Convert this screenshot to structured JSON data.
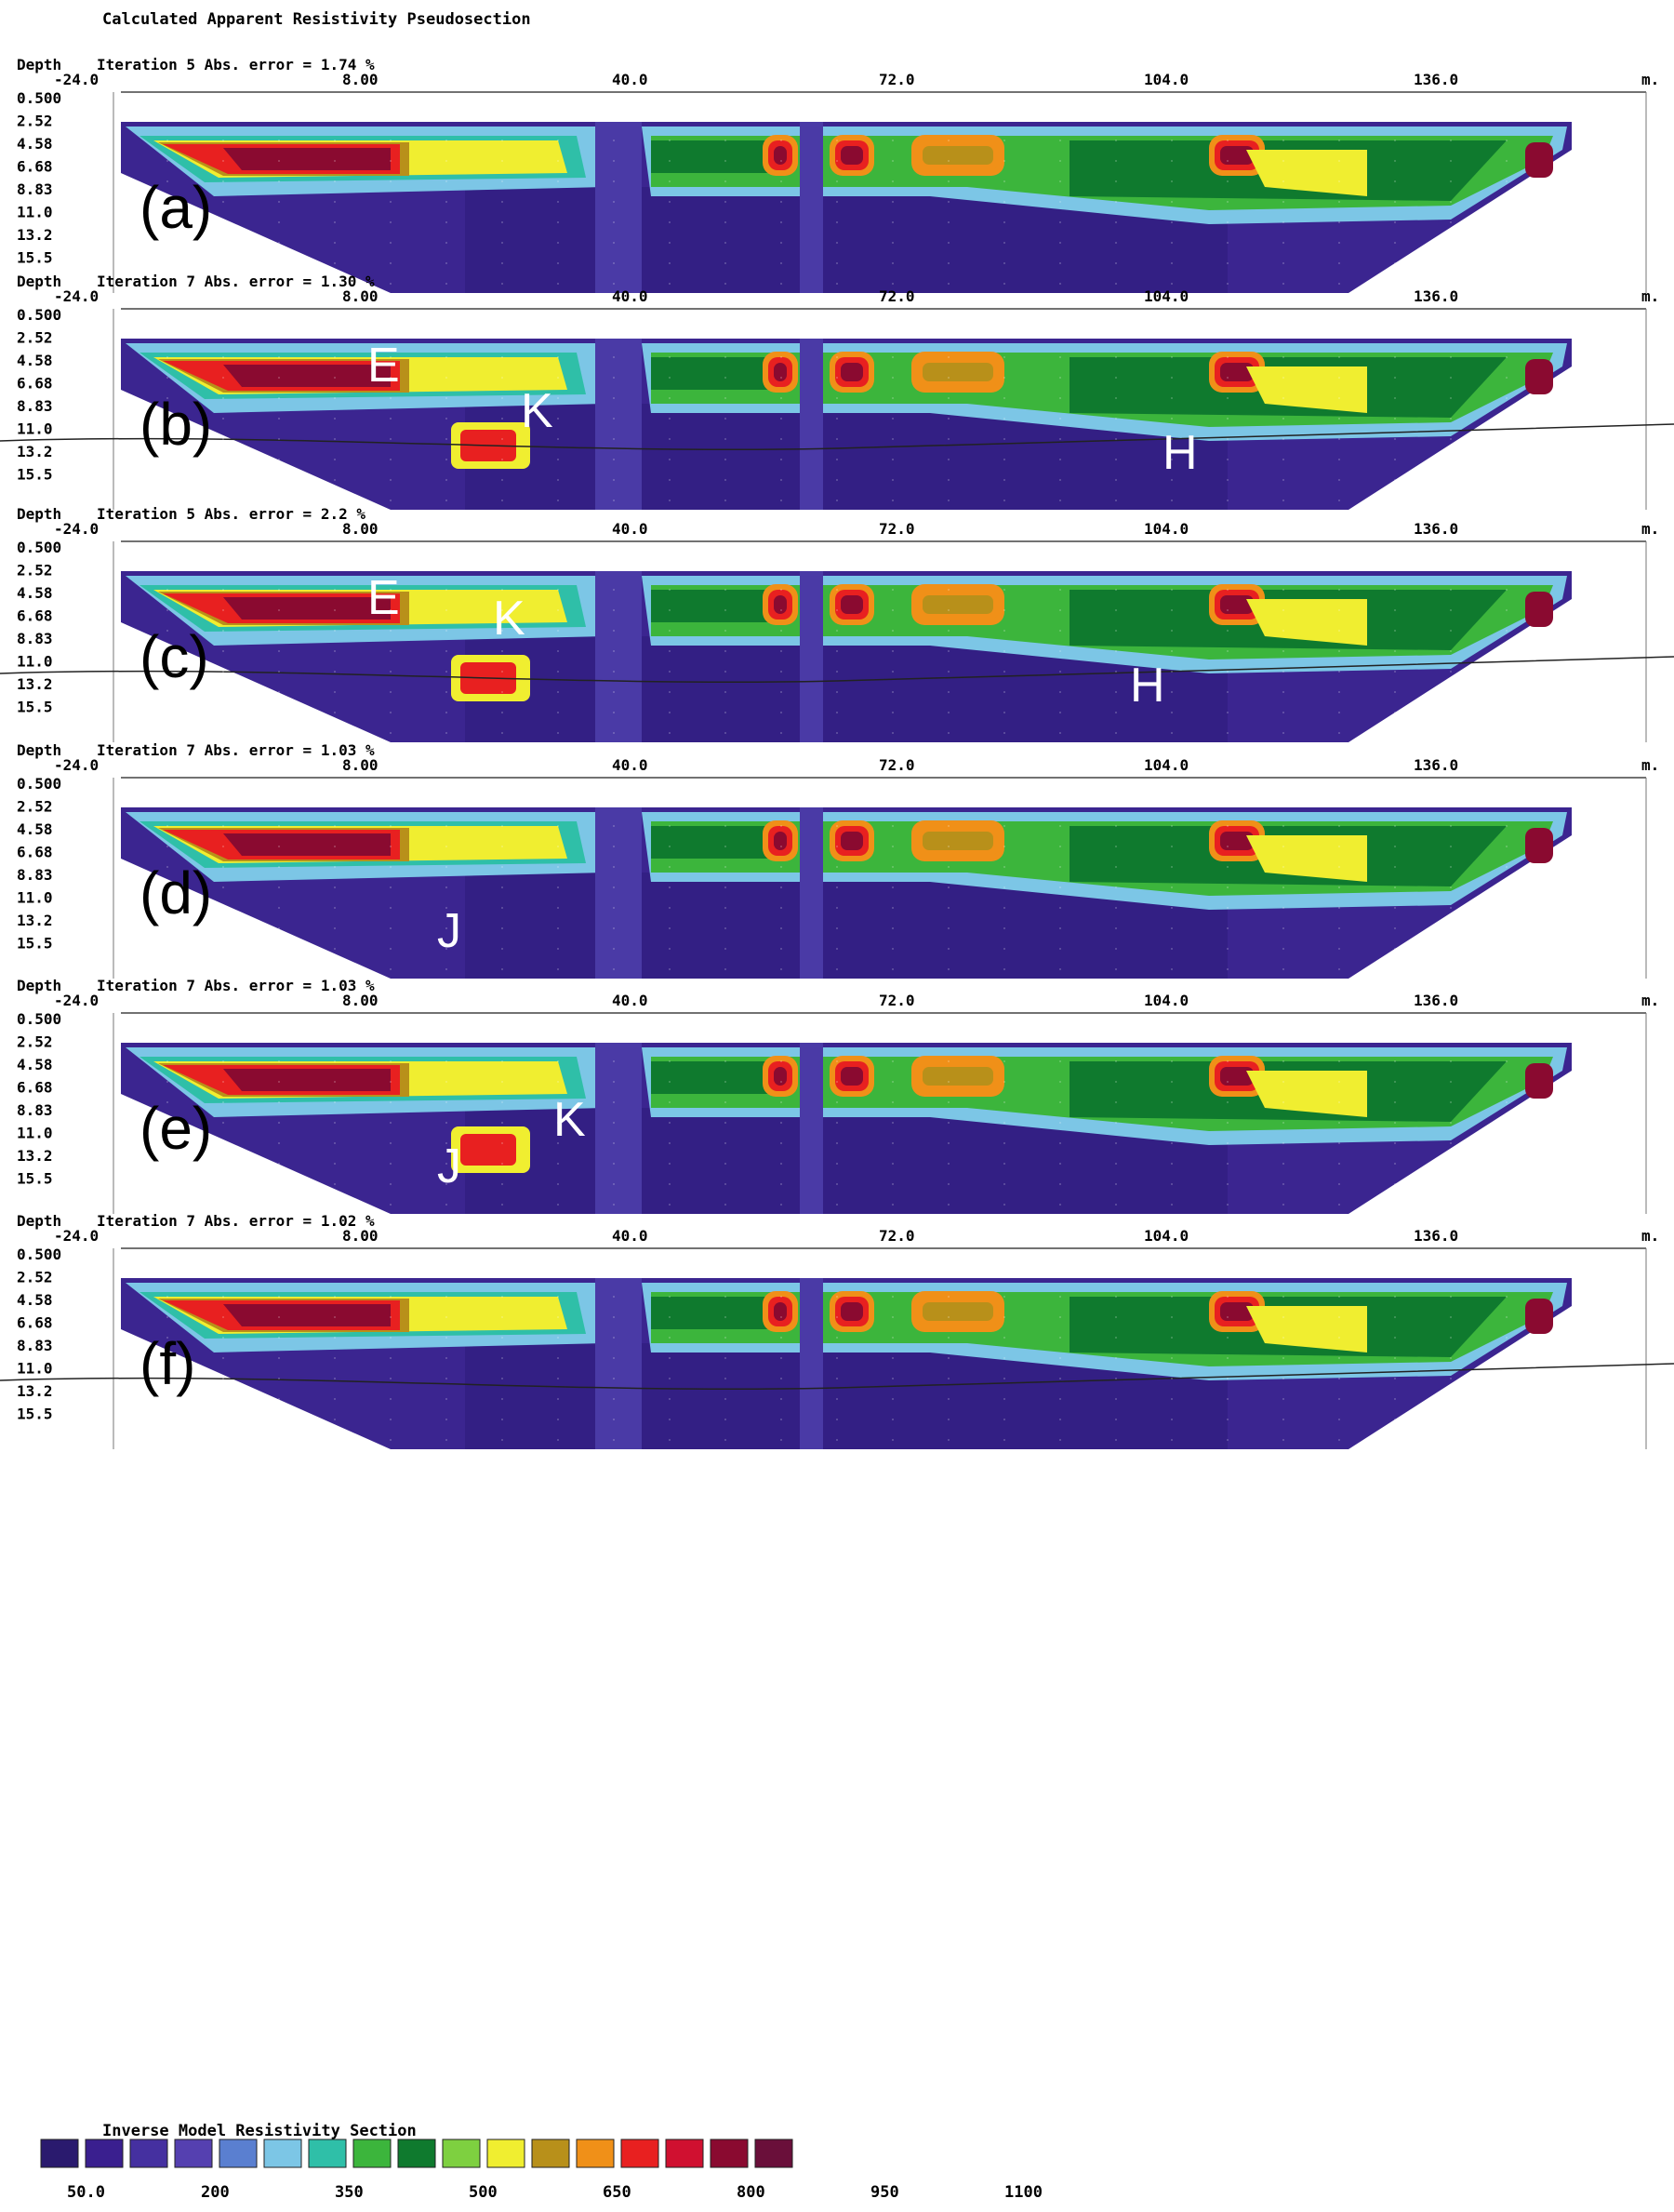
{
  "header": {
    "title": "Calculated Apparent Resistivity Pseudosection"
  },
  "axis": {
    "x_ticks": [
      "-24.0",
      "8.00",
      "40.0",
      "72.0",
      "104.0",
      "136.0"
    ],
    "x_unit": "m.",
    "depth_label": "Depth",
    "depth_ticks": [
      "0.500",
      "2.52",
      "4.58",
      "6.68",
      "8.83",
      "11.0",
      "13.2",
      "15.5"
    ]
  },
  "panels": [
    {
      "id": "a",
      "iteration_text": "Iteration 5 Abs. error = 1.74 %",
      "label": "(a)",
      "markers": [],
      "has_line": false
    },
    {
      "id": "b",
      "iteration_text": "Iteration 7 Abs. error = 1.30 %",
      "label": "(b)",
      "markers": [
        "E",
        "K",
        "H"
      ],
      "has_line": true
    },
    {
      "id": "c",
      "iteration_text": "Iteration 5 Abs. error = 2.2 %",
      "label": "(c)",
      "markers": [
        "E",
        "K",
        "H"
      ],
      "has_line": true
    },
    {
      "id": "d",
      "iteration_text": "Iteration 7 Abs. error = 1.03 %",
      "label": "(d)",
      "markers": [
        "J"
      ],
      "has_line": false
    },
    {
      "id": "e",
      "iteration_text": "Iteration 7 Abs. error = 1.03 %",
      "label": "(e)",
      "markers": [
        "J",
        "K"
      ],
      "has_line": false
    },
    {
      "id": "f",
      "iteration_text": "Iteration 7 Abs. error = 1.02 %",
      "label": "(f)",
      "markers": [],
      "has_line": true
    }
  ],
  "legend": {
    "title": "Inverse Model Resistivity Section",
    "colors": [
      "#2a1a6e",
      "#3a1f8f",
      "#4530a0",
      "#5540b0",
      "#5a7fd0",
      "#7cc6e6",
      "#2fbfa8",
      "#3cb53c",
      "#0f7a2e",
      "#7ed040",
      "#f0ee30",
      "#b8901a",
      "#f09018",
      "#e82020",
      "#d01030",
      "#8a0a30",
      "#6a0f3a"
    ],
    "labels": [
      "50.0",
      "200",
      "350",
      "500",
      "650",
      "800",
      "950",
      "1100"
    ]
  },
  "colors": {
    "background": "#3b2590",
    "text": "#111111",
    "marker": "#ffffff"
  }
}
